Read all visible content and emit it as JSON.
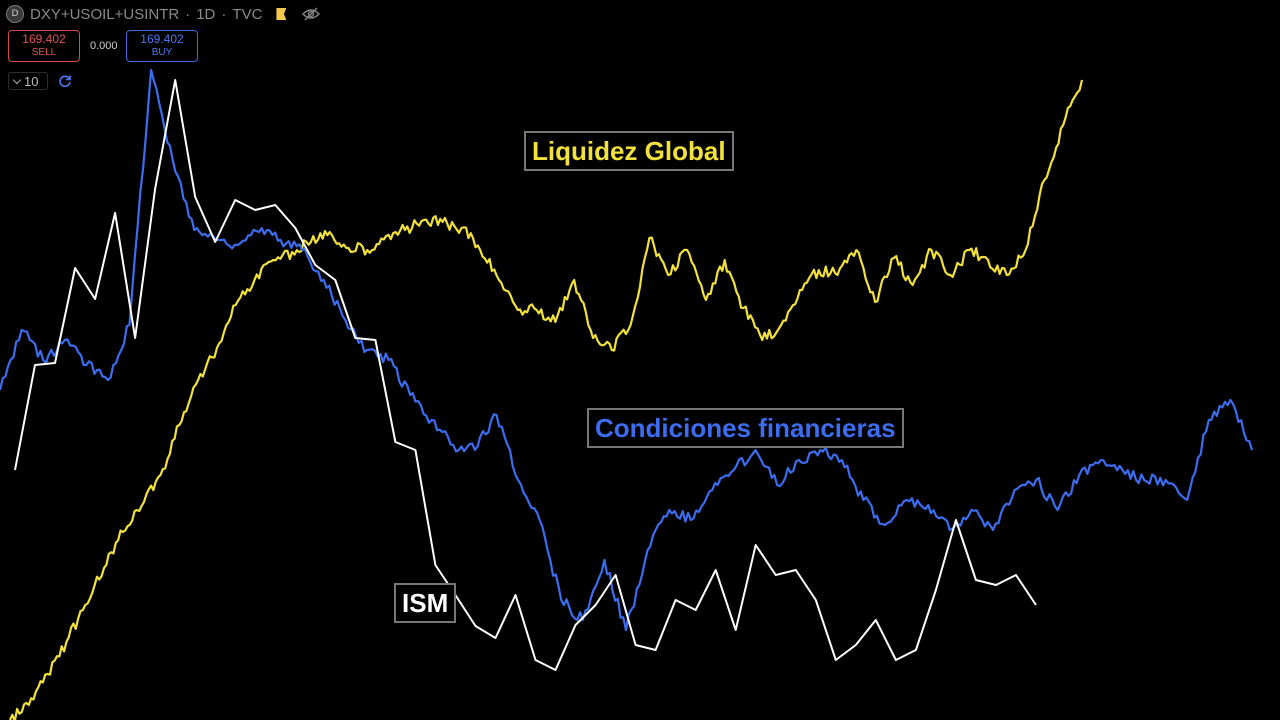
{
  "header": {
    "symbol_icon_letter": "D",
    "symbol": "DXY+USOIL+USINTR",
    "sep1": "·",
    "interval": "1D",
    "sep2": "·",
    "source": "TVC",
    "icons": [
      "flag-icon",
      "eye-off-icon"
    ]
  },
  "trade": {
    "sell_price": "169.402",
    "sell_label": "SELL",
    "spread": "0.000",
    "buy_price": "169.402",
    "buy_label": "BUY",
    "quantity": "10",
    "icons": [
      "chevron-down-icon",
      "refresh-icon"
    ]
  },
  "colors": {
    "background": "#000000",
    "liquidity": "#f2e13a",
    "financial": "#3c6df0",
    "ism": "#ffffff",
    "sell": "#e25555",
    "buy": "#4a7af0"
  },
  "chart_data": {
    "type": "line",
    "y_axis_shown": false,
    "x_axis_shown": false,
    "grid": false,
    "series": [
      {
        "name": "Liquidez Global",
        "color": "#f2e13a",
        "values": [
          0,
          15,
          46,
          78,
          115,
          152,
          188,
          214,
          245,
          295,
          340,
          372,
          415,
          440,
          460,
          468,
          478,
          488,
          472,
          470,
          484,
          490,
          500,
          498,
          492,
          470,
          440,
          410,
          410,
          398,
          440,
          382,
          370,
          395,
          482,
          445,
          470,
          420,
          460,
          412,
          380,
          395,
          430,
          450,
          445,
          470,
          418,
          462,
          435,
          470,
          445,
          470,
          460,
          445,
          470,
          540,
          595,
          640
        ]
      },
      {
        "name": "Condiciones financieras",
        "color": "#3c6df0",
        "values": [
          330,
          390,
          360,
          380,
          355,
          340,
          395,
          650,
          560,
          490,
          480,
          475,
          488,
          480,
          470,
          440,
          400,
          370,
          360,
          325,
          300,
          275,
          270,
          305,
          240,
          200,
          120,
          100,
          160,
          90,
          170,
          210,
          200,
          230,
          250,
          270,
          235,
          260,
          270,
          260,
          220,
          195,
          220,
          215,
          190,
          210,
          190,
          230,
          240,
          210,
          245,
          260,
          250,
          240,
          240,
          220,
          300,
          320,
          270
        ]
      },
      {
        "name": "ISM",
        "color": "#ffffff",
        "values": [
          250,
          355,
          357,
          452,
          421,
          507,
          382,
          531,
          640,
          523,
          478,
          520,
          510,
          515,
          492,
          455,
          440,
          382,
          380,
          278,
          270,
          155,
          125,
          94,
          82,
          125,
          60,
          50,
          95,
          115,
          145,
          75,
          70,
          120,
          110,
          150,
          90,
          175,
          145,
          150,
          120,
          60,
          75,
          100,
          60,
          70,
          130,
          200,
          140,
          135,
          145,
          115
        ]
      }
    ],
    "annotations": [
      {
        "text": "Liquidez Global",
        "series": "Liquidez Global"
      },
      {
        "text": "Condiciones financieras",
        "series": "Condiciones financieras"
      },
      {
        "text": "ISM",
        "series": "ISM"
      }
    ]
  }
}
